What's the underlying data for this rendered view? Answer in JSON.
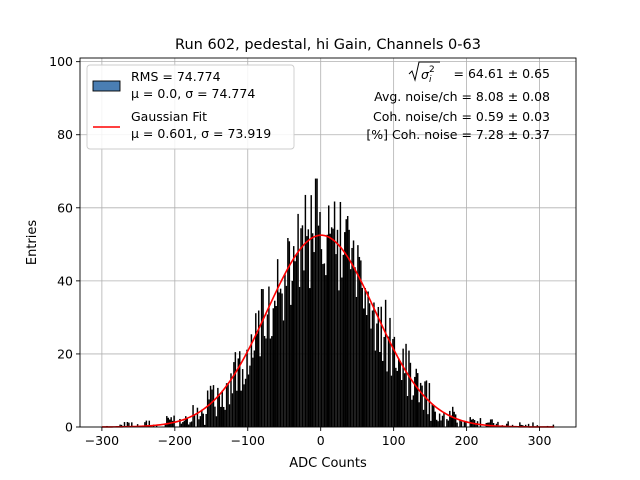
{
  "chart_data": {
    "type": "bar",
    "title": "Run 602, pedestal, hi Gain, Channels 0-63",
    "xlabel": "ADC Counts",
    "ylabel": "Entries",
    "xlim": [
      -330,
      350
    ],
    "ylim": [
      0,
      101
    ],
    "grid": true,
    "x_ticks": [
      "−300",
      "−200",
      "−100",
      "0",
      "100",
      "200",
      "300"
    ],
    "x_tick_values": [
      -300,
      -200,
      -100,
      0,
      100,
      200,
      300
    ],
    "y_ticks": [
      "0",
      "20",
      "40",
      "60",
      "80",
      "100"
    ],
    "y_tick_values": [
      0,
      20,
      40,
      60,
      80,
      100
    ],
    "histogram": {
      "x_start": -300,
      "x_end": 320,
      "bin_width": 2,
      "peak_x": -6,
      "peak_entries": 68,
      "color": "#000000",
      "legend_color": "#4a7eb3"
    },
    "series": [
      {
        "name": "RMS = 74.774",
        "name_line2": "μ = 0.0, σ = 74.774",
        "kind": "histogram",
        "color": "#4a7eb3"
      },
      {
        "name": "Gaussian Fit",
        "name_line2": "μ = 0.601, σ = 73.919",
        "kind": "line",
        "color": "#ff0000",
        "mu": 0.601,
        "sigma": 73.919,
        "amplitude": 52.5
      }
    ],
    "legend_position": "top-left",
    "annotations": [
      "= 64.61 ± 0.65",
      "Avg. noise/ch = 8.08 ± 0.08",
      "Coh. noise/ch = 0.59 ± 0.03",
      "[%] Coh. noise = 7.28 ± 0.37"
    ]
  }
}
